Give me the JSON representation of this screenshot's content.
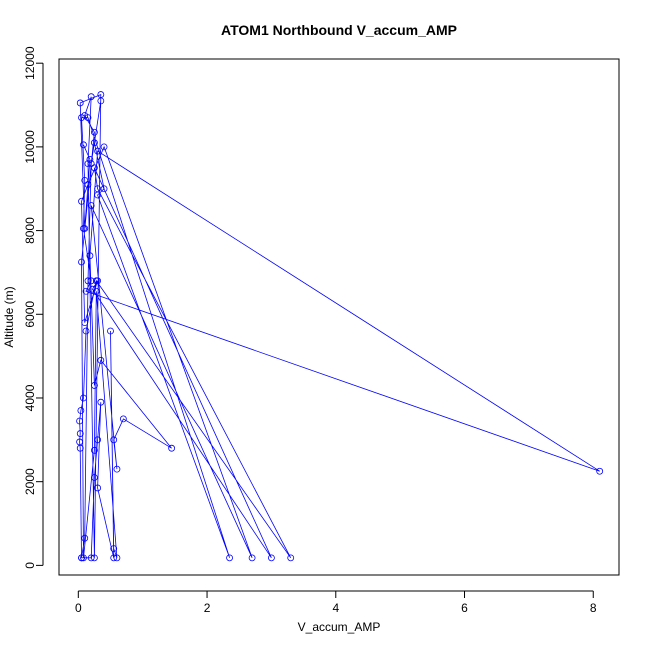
{
  "chart_data": {
    "type": "line",
    "title": "ATOM1 Northbound V_accum_AMP",
    "xlabel": "V_accum_AMP",
    "ylabel": "Altitude (m)",
    "xlim": [
      -0.3,
      8.4
    ],
    "ylim": [
      -230,
      12100
    ],
    "xticks": [
      0,
      2,
      4,
      6,
      8
    ],
    "yticks": [
      0,
      2000,
      4000,
      6000,
      8000,
      10000,
      12000
    ],
    "grid": false,
    "legend": "none",
    "color": "#0000ff",
    "marker": "open-circle",
    "series": [
      {
        "points": [
          [
            0.05,
            180
          ],
          [
            0.1,
            650
          ],
          [
            0.15,
            6800
          ],
          [
            0.2,
            9600
          ],
          [
            0.35,
            11100
          ],
          [
            0.25,
            10100
          ],
          [
            0.4,
            9000
          ],
          [
            0.3,
            8850
          ],
          [
            2.35,
            180
          ],
          [
            0.15,
            10700
          ],
          [
            0.05,
            10700
          ],
          [
            0.1,
            9200
          ],
          [
            0.08,
            8050
          ],
          [
            0.2,
            6800
          ],
          [
            0.12,
            6550
          ],
          [
            8.1,
            2250
          ],
          [
            0.3,
            9900
          ],
          [
            0.18,
            7400
          ],
          [
            0.25,
            4300
          ],
          [
            0.35,
            4900
          ],
          [
            1.45,
            2800
          ],
          [
            0.7,
            3500
          ],
          [
            0.55,
            3000
          ],
          [
            0.6,
            2300
          ],
          [
            0.2,
            8600
          ],
          [
            2.7,
            180
          ],
          [
            0.4,
            10000
          ],
          [
            0.15,
            9100
          ],
          [
            0.05,
            8700
          ],
          [
            0.1,
            5800
          ],
          [
            0.3,
            6800
          ],
          [
            0.22,
            6600
          ],
          [
            3.0,
            180
          ],
          [
            0.25,
            9500
          ],
          [
            0.3,
            9000
          ],
          [
            3.3,
            180
          ],
          [
            0.28,
            6800
          ],
          [
            0.12,
            5600
          ],
          [
            0.08,
            4000
          ],
          [
            0.04,
            3700
          ],
          [
            0.02,
            3450
          ],
          [
            0.03,
            3150
          ],
          [
            0.02,
            2950
          ],
          [
            0.03,
            2800
          ],
          [
            0.05,
            180
          ],
          [
            0.2,
            180
          ],
          [
            0.25,
            2100
          ],
          [
            0.3,
            3000
          ],
          [
            0.35,
            3900
          ],
          [
            0.3,
            1850
          ],
          [
            0.55,
            180
          ],
          [
            0.5,
            5600
          ],
          [
            0.55,
            400
          ],
          [
            0.6,
            180
          ],
          [
            0.28,
            6550
          ],
          [
            0.25,
            2750
          ],
          [
            0.08,
            180
          ],
          [
            0.05,
            7250
          ],
          [
            0.25,
            10350
          ],
          [
            0.1,
            10750
          ],
          [
            0.2,
            11200
          ],
          [
            0.15,
            9600
          ],
          [
            0.25,
            180
          ],
          [
            0.35,
            11250
          ],
          [
            0.03,
            11050
          ],
          [
            0.1,
            8050
          ],
          [
            0.18,
            9700
          ],
          [
            0.08,
            10050
          ]
        ]
      }
    ]
  }
}
